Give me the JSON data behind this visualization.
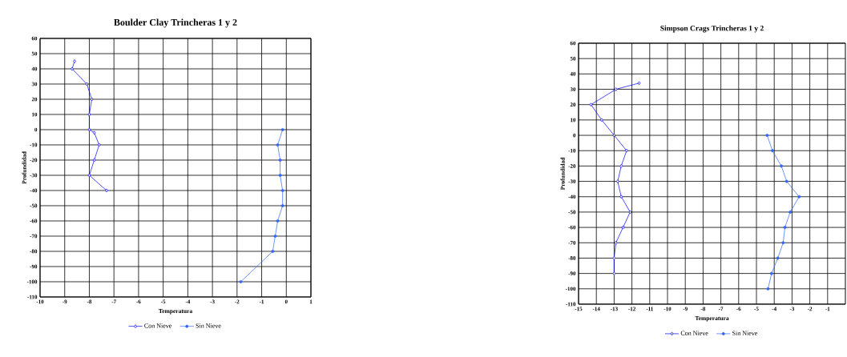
{
  "chart_data": [
    {
      "type": "line",
      "title": "Boulder Clay Trincheras 1 y 2",
      "xlabel": "Temperatura",
      "ylabel": "Profundidad",
      "xlim": [
        -10,
        1
      ],
      "ylim": [
        -110,
        60
      ],
      "xticks": [
        -10,
        -9,
        -8,
        -7,
        -6,
        -5,
        -4,
        -3,
        -2,
        -1,
        0,
        1
      ],
      "yticks": [
        -110,
        -100,
        -90,
        -80,
        -70,
        -60,
        -50,
        -40,
        -30,
        -20,
        -10,
        0,
        10,
        20,
        30,
        40,
        50,
        60
      ],
      "grid": true,
      "legend": "bottom",
      "series": [
        {
          "name": "Con Nieve",
          "color": "#0000ff",
          "marker": "diamond",
          "x": [
            -8.6,
            -8.7,
            -8.1,
            -7.9,
            -8.0,
            -8.0,
            -7.8,
            -7.6,
            -7.8,
            -8.0,
            -7.3
          ],
          "values": [
            45,
            40,
            30,
            20,
            10,
            0,
            -2,
            -10,
            -20,
            -30,
            -40
          ]
        },
        {
          "name": "Sin Nieve",
          "color": "#3366ff",
          "marker": "circle",
          "x": [
            -0.15,
            -0.35,
            -0.25,
            -0.25,
            -0.15,
            -0.15,
            -0.35,
            -0.45,
            -0.55,
            -1.85
          ],
          "values": [
            0,
            -10,
            -20,
            -30,
            -40,
            -50,
            -60,
            -70,
            -80,
            -100
          ]
        }
      ]
    },
    {
      "type": "line",
      "title": "Simpson Crags Trincheras 1 y 2",
      "xlabel": "Temperatura",
      "ylabel": "Profundidad",
      "xlim": [
        -15,
        0
      ],
      "ylim": [
        -110,
        60
      ],
      "xticks": [
        -15,
        -14,
        -13,
        -12,
        -11,
        -10,
        -9,
        -8,
        -7,
        -6,
        -5,
        -4,
        -3,
        -2,
        -1
      ],
      "yticks": [
        -110,
        -100,
        -90,
        -80,
        -70,
        -60,
        -50,
        -40,
        -30,
        -20,
        -10,
        0,
        10,
        20,
        30,
        40,
        50,
        60
      ],
      "grid": true,
      "legend": "bottom",
      "series": [
        {
          "name": "Con Nieve",
          "color": "#0000ff",
          "marker": "diamond",
          "x": [
            -11.6,
            -12.9,
            -14.3,
            -13.7,
            -13.0,
            -12.3,
            -12.6,
            -12.8,
            -12.6,
            -12.1,
            -12.5,
            -12.9,
            -13.0,
            -13.0
          ],
          "values": [
            34,
            30,
            20,
            10,
            0,
            -10,
            -20,
            -30,
            -40,
            -50,
            -60,
            -70,
            -80,
            -90
          ]
        },
        {
          "name": "Sin Nieve",
          "color": "#3366ff",
          "marker": "circle",
          "x": [
            -4.4,
            -4.1,
            -3.6,
            -3.3,
            -2.6,
            -3.1,
            -3.4,
            -3.5,
            -3.8,
            -4.15,
            -4.35
          ],
          "values": [
            0,
            -10,
            -20,
            -30,
            -40,
            -50,
            -60,
            -70,
            -80,
            -90,
            -100
          ]
        }
      ]
    }
  ]
}
